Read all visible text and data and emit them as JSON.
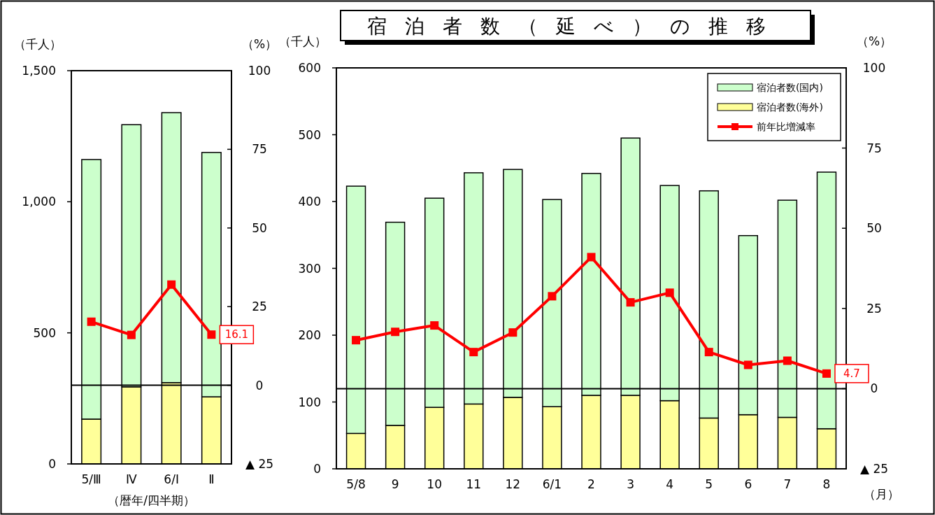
{
  "chart_data": [
    {
      "type": "bar",
      "stacked": true,
      "xlabel": "（暦年/四半期）",
      "ylabel": "（千人）",
      "y2label": "（%）",
      "categories": [
        "5/Ⅲ",
        "Ⅳ",
        "6/Ⅰ",
        "Ⅱ"
      ],
      "series": [
        {
          "color": "#ffff99",
          "values": [
            171,
            294,
            310,
            256
          ]
        },
        {
          "color": "#ccffcc",
          "values": [
            990,
            1000,
            1030,
            932
          ]
        },
        {
          "type": "line",
          "axis": "y2",
          "color": "#ff0000",
          "values": [
            20.2,
            16.0,
            32.0,
            16.1
          ],
          "value_labels": [
            null,
            null,
            null,
            "16.1"
          ]
        }
      ],
      "ylim": [
        0,
        1500
      ],
      "yticks": [
        0,
        500,
        {
          "value": 1000,
          "label": "1,000"
        },
        {
          "value": 1500,
          "label": "1,500"
        }
      ],
      "y2lim": [
        -25,
        100
      ],
      "y2ticks": [
        {
          "value": -25,
          "label": "▲ 25"
        },
        0,
        25,
        50,
        75,
        100
      ],
      "ref_lines": [
        {
          "axis": "y2",
          "value": 0
        }
      ],
      "marker": "square",
      "legend": false
    },
    {
      "type": "bar",
      "stacked": true,
      "title": "宿泊者数（延べ）の推移",
      "xlabel": "（月）",
      "ylabel": "（千人）",
      "y2label": "（%）",
      "categories": [
        "5/8",
        "9",
        "10",
        "11",
        "12",
        "6/1",
        "2",
        "3",
        "4",
        "5",
        "6",
        "7",
        "8"
      ],
      "series": [
        {
          "name": "宿泊者数(海外)",
          "color": "#ffff99",
          "values": [
            53,
            65,
            92,
            97,
            107,
            93,
            110,
            110,
            102,
            76,
            81,
            77,
            60
          ]
        },
        {
          "name": "宿泊者数(国内)",
          "color": "#ccffcc",
          "values": [
            370,
            304,
            313,
            346,
            341,
            310,
            332,
            385,
            322,
            340,
            268,
            325,
            384
          ]
        },
        {
          "name": "前年比増減率",
          "type": "line",
          "axis": "y2",
          "color": "#ff0000",
          "values": [
            15.1,
            17.7,
            19.7,
            11.4,
            17.5,
            28.8,
            41.0,
            26.9,
            29.9,
            11.4,
            7.4,
            8.7,
            4.7
          ],
          "value_labels": [
            null,
            null,
            null,
            null,
            null,
            null,
            null,
            null,
            null,
            null,
            null,
            null,
            "4.7"
          ]
        }
      ],
      "ylim": [
        0,
        600
      ],
      "yticks": [
        0,
        100,
        200,
        300,
        400,
        500,
        600
      ],
      "y2lim": [
        -25,
        100
      ],
      "y2ticks": [
        {
          "value": -25,
          "label": "▲ 25"
        },
        0,
        25,
        50,
        75,
        100
      ],
      "ref_lines": [
        {
          "axis": "y2",
          "value": 0
        }
      ],
      "marker": "square",
      "legend": "top right"
    }
  ]
}
